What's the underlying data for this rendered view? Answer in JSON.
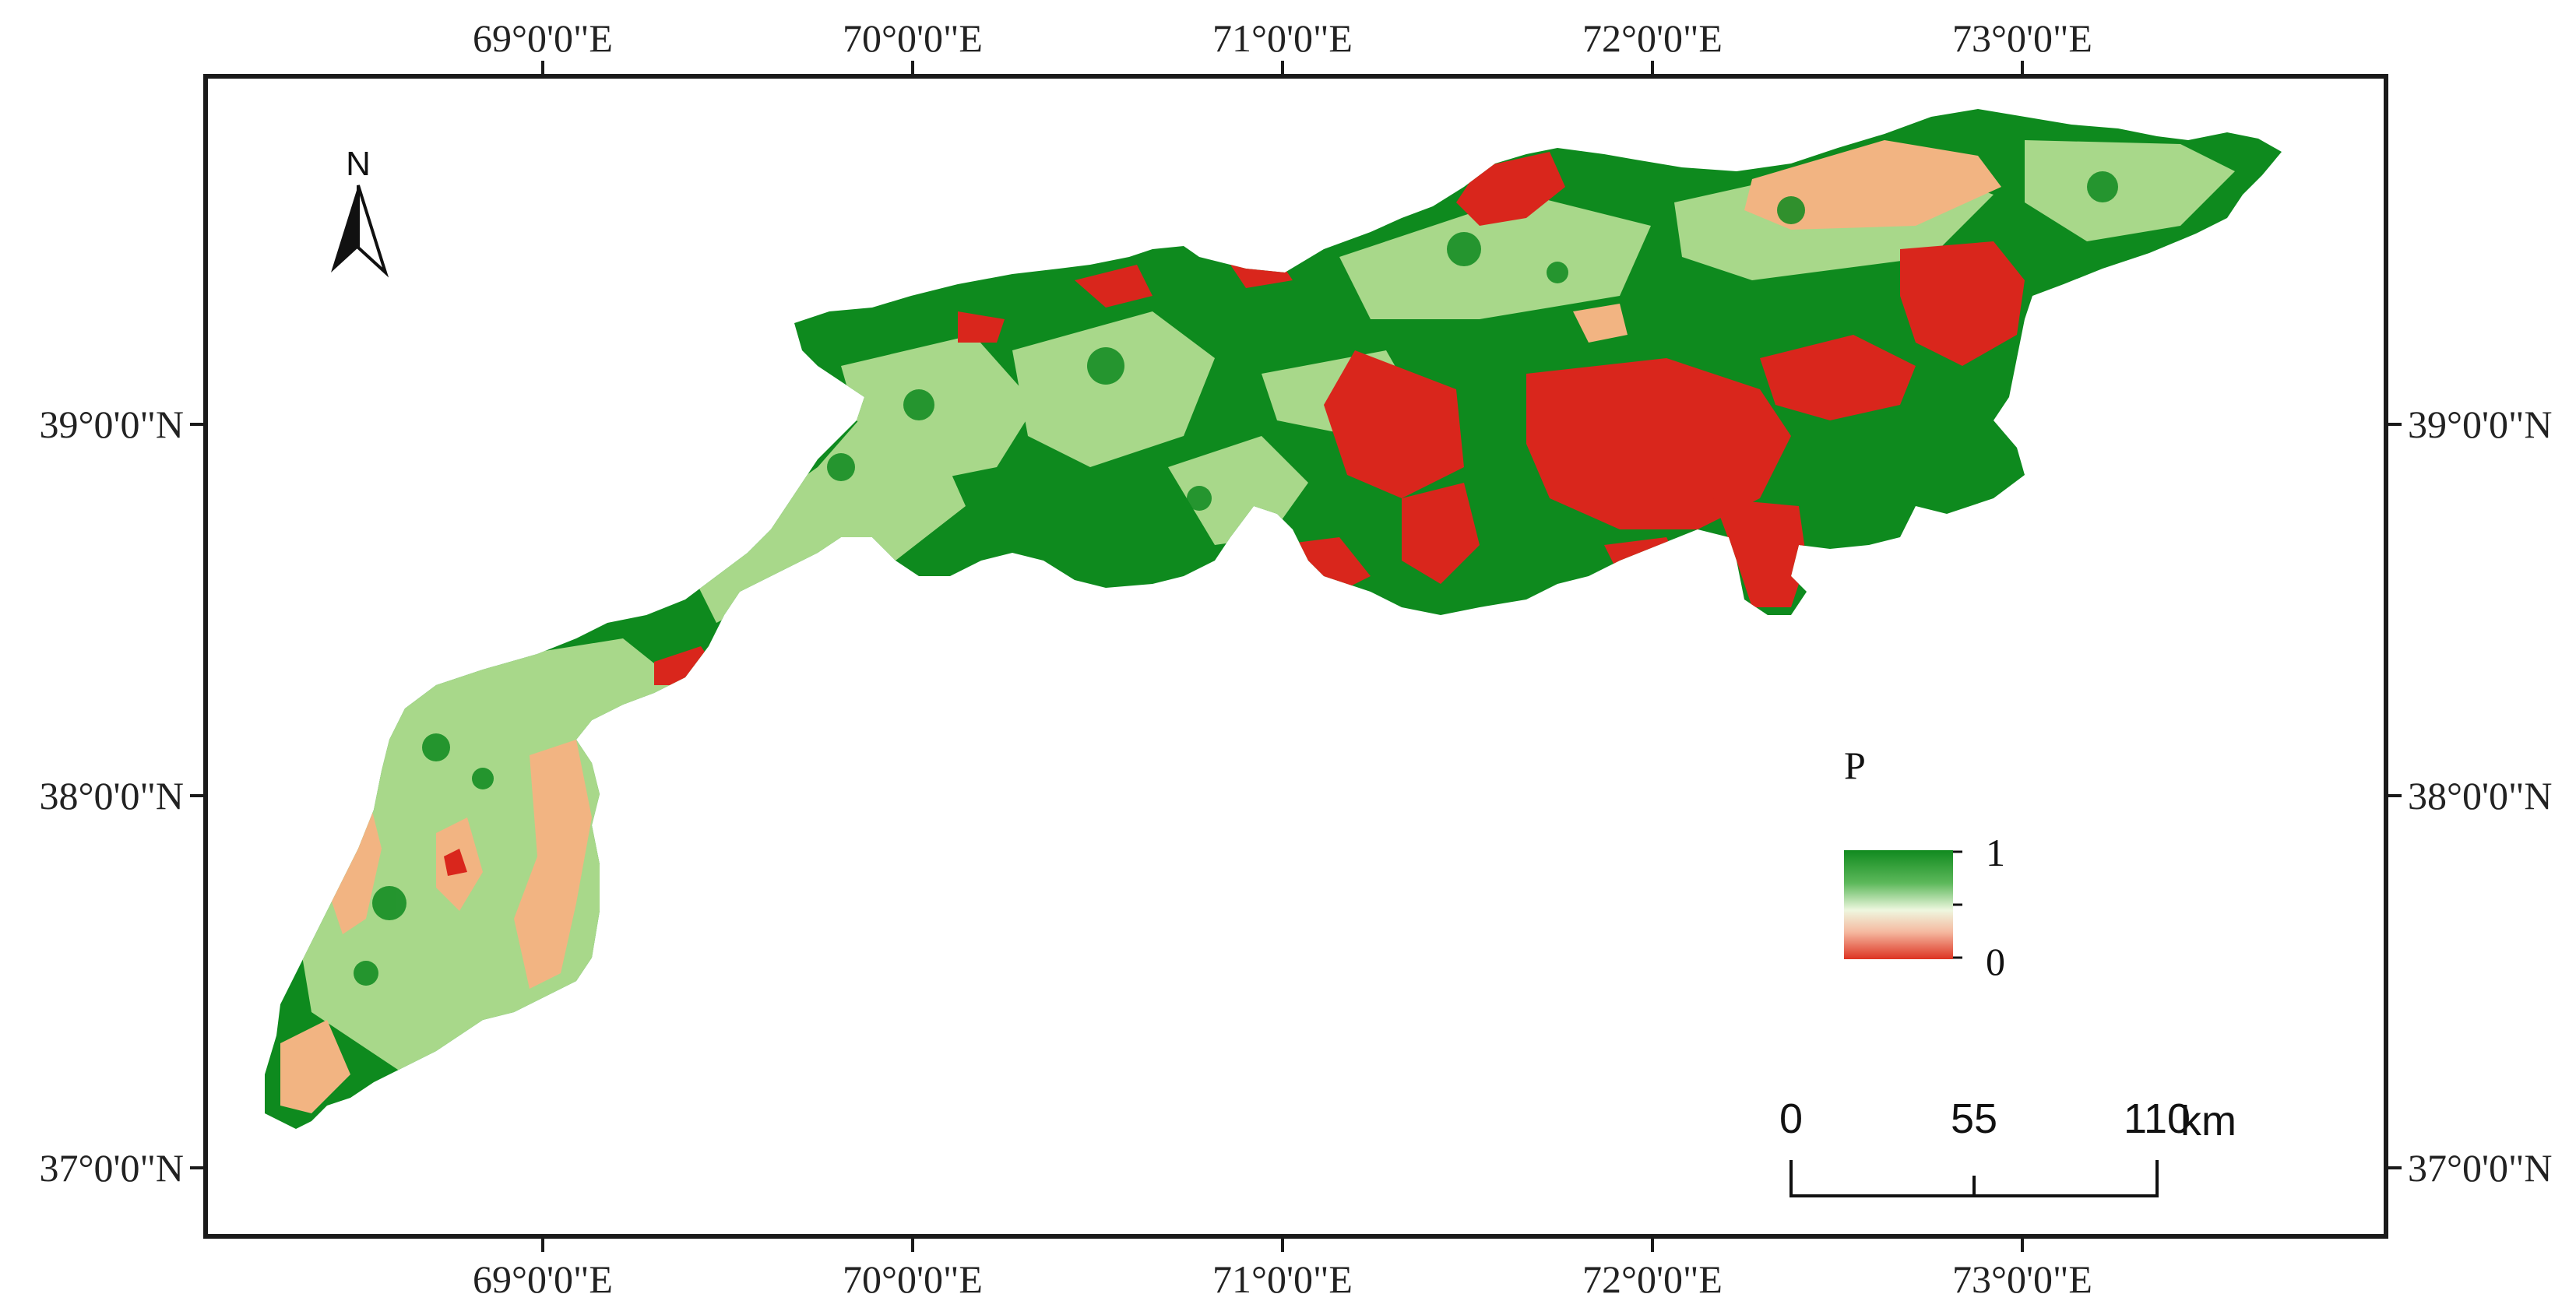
{
  "map": {
    "top_labels": [
      "69°0'0\"E",
      "70°0'0\"E",
      "71°0'0\"E",
      "72°0'0\"E",
      "73°0'0\"E"
    ],
    "bottom_labels": [
      "69°0'0\"E",
      "70°0'0\"E",
      "71°0'0\"E",
      "72°0'0\"E",
      "73°0'0\"E"
    ],
    "left_labels": [
      "39°0'0\"N",
      "38°0'0\"N",
      "37°0'0\"N"
    ],
    "right_labels": [
      "39°0'0\"N",
      "38°0'0\"N",
      "37°0'0\"N"
    ],
    "north_arrow": {
      "label": "N",
      "icon": "north-arrow-icon"
    },
    "legend": {
      "title": "P",
      "max_label": "1",
      "min_label": "0",
      "colors": {
        "high": "#118a1f",
        "mid": "#eaf5d8",
        "low": "#dd3322"
      }
    },
    "scale_bar": {
      "labels": [
        "0",
        "55",
        "110"
      ],
      "unit": "km"
    },
    "colors": {
      "dark_green": "#0e8a1e",
      "light_green": "#a8d88a",
      "peach": "#f2b482",
      "red": "#d9261c",
      "frame": "#1a1a1a"
    }
  }
}
